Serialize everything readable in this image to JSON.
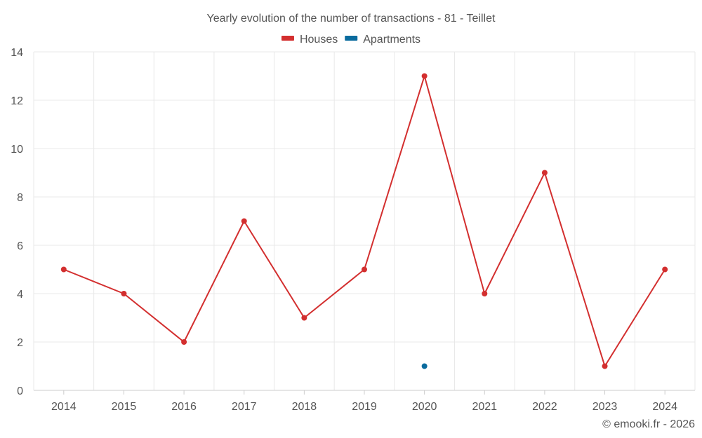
{
  "chart_data": {
    "type": "line",
    "title": "Yearly evolution of the number of transactions - 81 - Teillet",
    "categories": [
      "2014",
      "2015",
      "2016",
      "2017",
      "2018",
      "2019",
      "2020",
      "2021",
      "2022",
      "2023",
      "2024"
    ],
    "series": [
      {
        "name": "Houses",
        "color": "#d32f2f",
        "values": [
          5,
          4,
          2,
          7,
          3,
          5,
          13,
          4,
          9,
          1,
          5
        ]
      },
      {
        "name": "Apartments",
        "color": "#0a6b9e",
        "values": [
          null,
          null,
          null,
          null,
          null,
          null,
          1,
          null,
          null,
          null,
          null
        ]
      }
    ],
    "ylim": [
      0,
      14
    ],
    "yticks": [
      0,
      2,
      4,
      6,
      8,
      10,
      12,
      14
    ],
    "legend_position": "top-center",
    "grid": true
  },
  "credit": "© emooki.fr - 2026"
}
